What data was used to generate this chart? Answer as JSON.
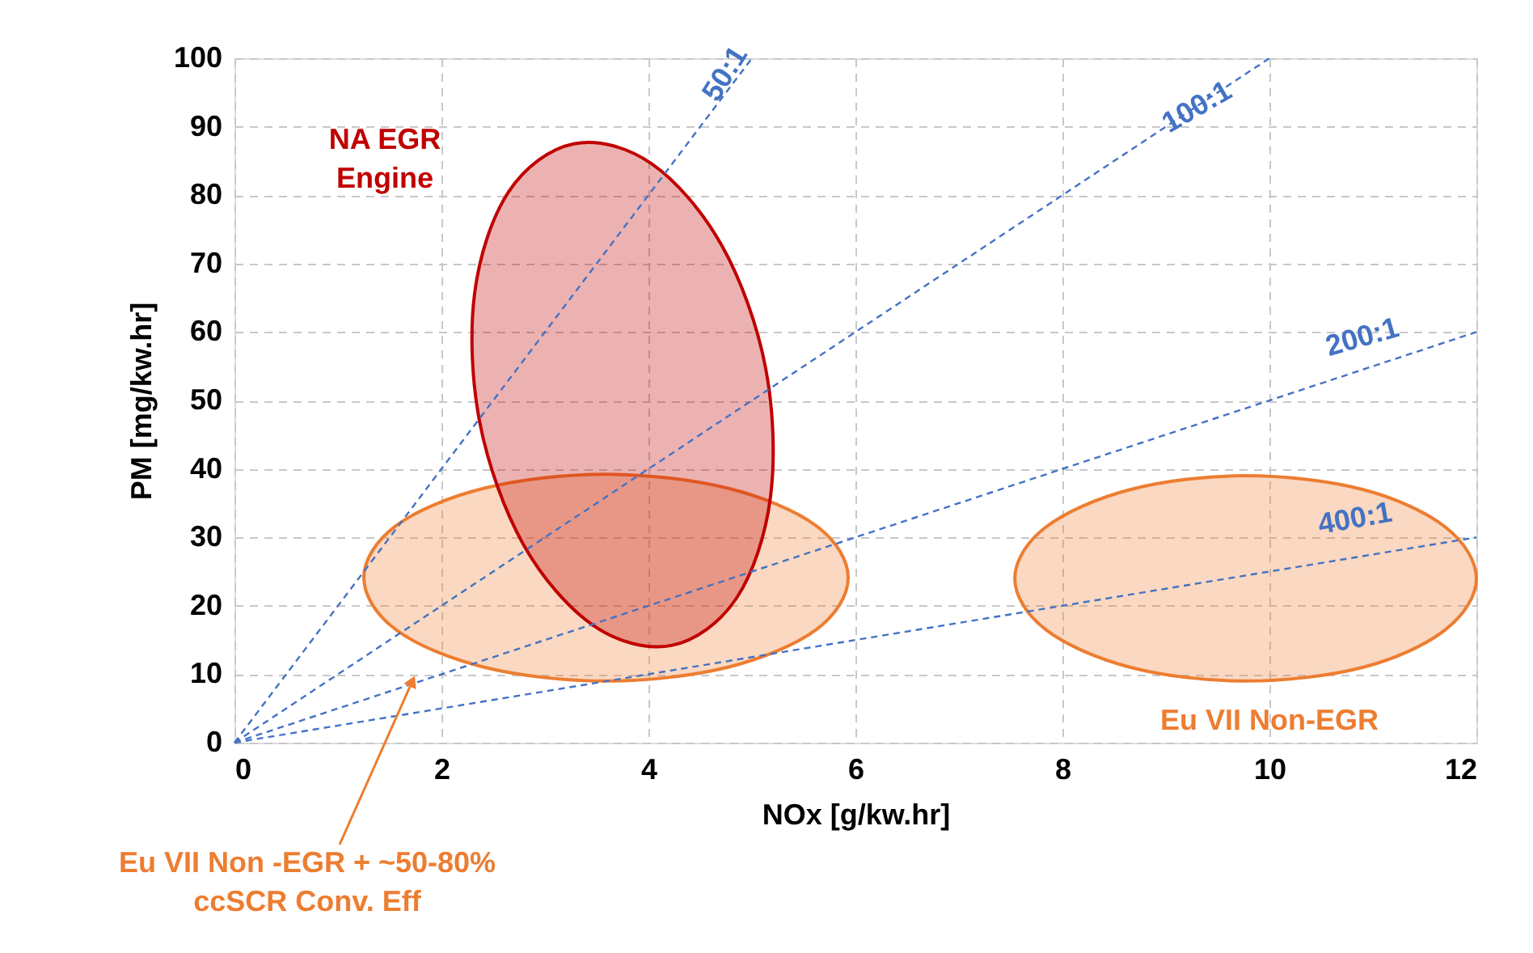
{
  "chart_data": {
    "type": "line",
    "xlabel": "NOx [g/kw.hr]",
    "ylabel": "PM [mg/kw.hr]",
    "xlim": [
      0,
      12
    ],
    "xticks": [
      0,
      2,
      4,
      6,
      8,
      10,
      12
    ],
    "ylim": [
      0,
      100
    ],
    "yticks": [
      0,
      10,
      20,
      30,
      40,
      50,
      60,
      70,
      80,
      90,
      100
    ],
    "grid": true,
    "line_style": "dashed",
    "series": [
      {
        "name": "50:1",
        "color": "#4472c4",
        "x": [
          0,
          5
        ],
        "values": [
          0,
          100
        ]
      },
      {
        "name": "100:1",
        "color": "#4472c4",
        "x": [
          0,
          10
        ],
        "values": [
          0,
          100
        ]
      },
      {
        "name": "200:1",
        "color": "#4472c4",
        "x": [
          0,
          12
        ],
        "values": [
          0,
          60
        ]
      },
      {
        "name": "400:1",
        "color": "#4472c4",
        "x": [
          0,
          12
        ],
        "values": [
          0,
          30
        ]
      },
      {
        "name": "Eu VII Non -EGR + ~50-80%\nccSCR Conv. Eff",
        "type": "area",
        "color": "#ed7d31",
        "x": [
          5.93,
          5.62,
          4.76,
          3.59,
          2.42,
          1.56,
          1.25,
          1.56,
          2.42,
          3.59,
          4.76,
          5.62
        ],
        "values": [
          24.1,
          31.7,
          37.2,
          39.2,
          37.2,
          31.7,
          24.1,
          16.5,
          11.0,
          9.0,
          11.0,
          16.5
        ]
      },
      {
        "name": "Eu VII Non-EGR",
        "type": "area",
        "color": "#ed7d31",
        "x": [
          12.0,
          11.7,
          10.9,
          9.77,
          8.66,
          7.84,
          7.54,
          7.84,
          8.66,
          9.77,
          10.9,
          11.7
        ],
        "values": [
          24,
          31.5,
          37.0,
          39,
          37.0,
          31.5,
          24,
          16.5,
          11.0,
          9,
          11.0,
          16.5
        ]
      },
      {
        "name": "NA EGR\nEngine",
        "type": "area",
        "color": "#c00000",
        "x": [
          3.28,
          4.03,
          4.71,
          5.13,
          5.18,
          4.85,
          4.22,
          3.47,
          2.79,
          2.37,
          2.32,
          2.65
        ],
        "values": [
          87.5,
          84.6,
          72.6,
          54.9,
          36.0,
          21.1,
          14.2,
          17.1,
          29.0,
          46.8,
          65.6,
          80.5
        ]
      }
    ]
  }
}
